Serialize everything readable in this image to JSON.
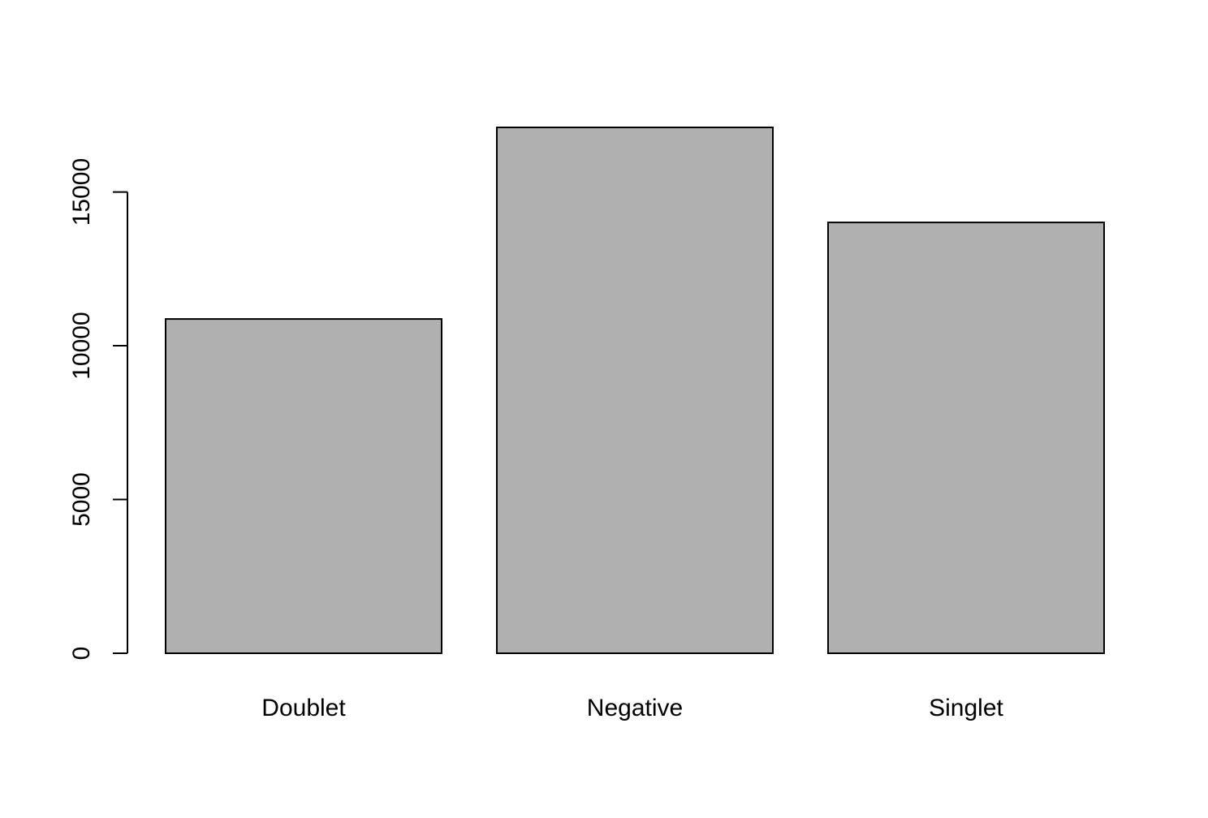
{
  "chart_data": {
    "type": "bar",
    "categories": [
      "Doublet",
      "Negative",
      "Singlet"
    ],
    "values": [
      10870,
      17100,
      14010
    ],
    "title": "",
    "xlabel": "",
    "ylabel": "",
    "ylim": [
      0,
      17100
    ],
    "yticks": [
      0,
      5000,
      10000,
      15000
    ],
    "ytick_labels": [
      "0",
      "5000",
      "10000",
      "15000"
    ],
    "grid": false,
    "legend": "none",
    "colors": {
      "bar_fill": "#b0b0b0",
      "bar_stroke": "#000000",
      "axis": "#000000",
      "background": "#ffffff"
    }
  }
}
